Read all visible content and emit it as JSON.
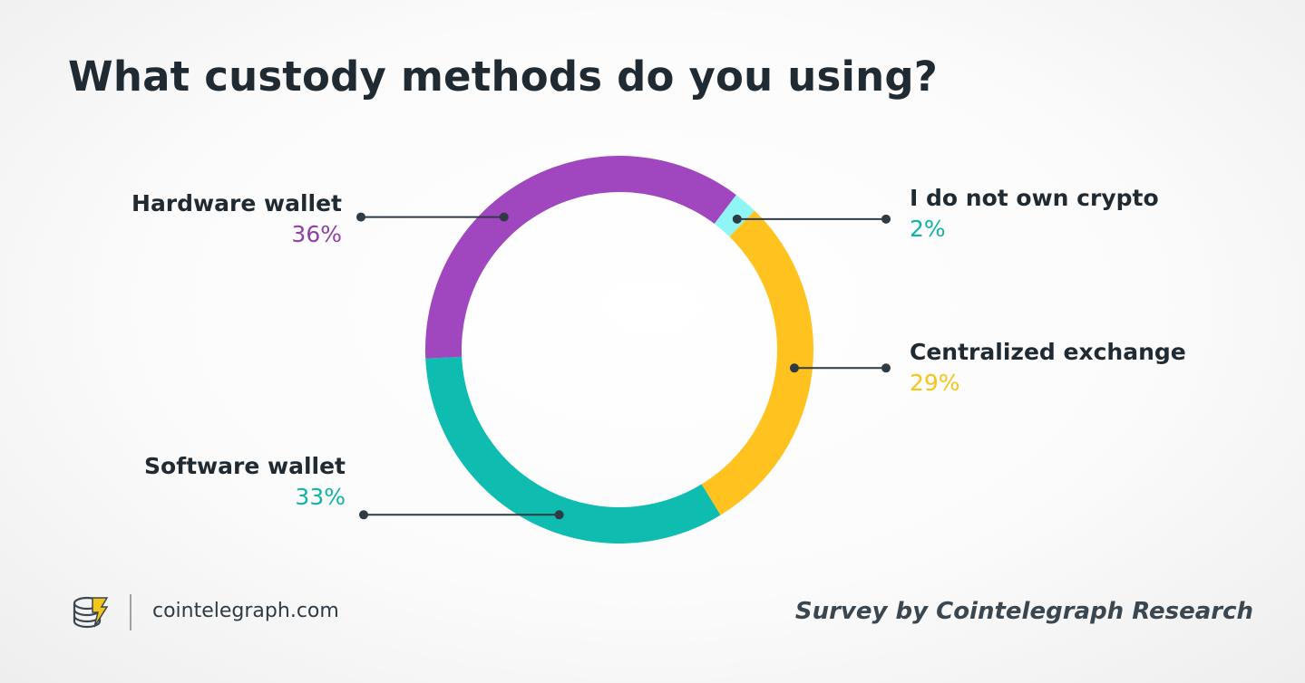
{
  "title": "What custody methods do you using?",
  "chart_data": {
    "type": "pie",
    "donut": true,
    "slices": [
      {
        "name": "Hardware wallet",
        "value": 36,
        "label": "36%",
        "color": "#a046be"
      },
      {
        "name": "I do not own crypto",
        "value": 2,
        "label": "2%",
        "color": "#8ff5f5"
      },
      {
        "name": "Centralized exchange",
        "value": 29,
        "label": "29%",
        "color": "#ffc21f"
      },
      {
        "name": "Software wallet",
        "value": 33,
        "label": "33%",
        "color": "#0fbcb0"
      }
    ],
    "label_colors": {
      "Hardware wallet": "#8e3fa8",
      "I do not own crypto": "#0fb3a7",
      "Centralized exchange": "#f5c518",
      "Software wallet": "#0fb3a7"
    }
  },
  "footer": {
    "site": "cointelegraph.com",
    "credit": "Survey by Cointelegraph Research",
    "logo_icon": "cointelegraph-coin-icon"
  }
}
